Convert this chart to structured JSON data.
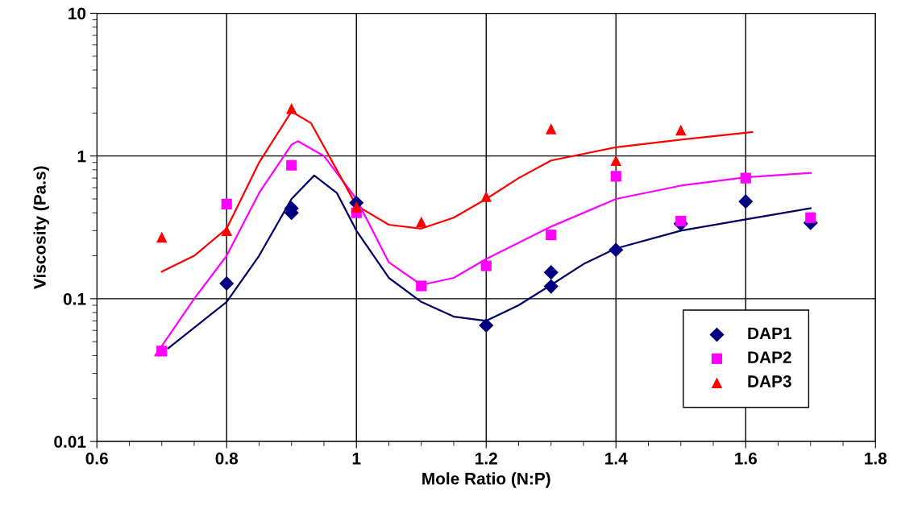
{
  "chart_data": {
    "type": "scatter",
    "xlabel": "Mole Ratio (N:P)",
    "ylabel": "Viscosity (Pa.s)",
    "log": "y",
    "grid": true,
    "legend": "bottom right",
    "xlim": [
      0.6,
      1.8
    ],
    "xticks": [
      0.6,
      0.8,
      1,
      1.2,
      1.4,
      1.6,
      1.8
    ],
    "ylim": [
      0.01,
      10
    ],
    "yticks": [
      0.01,
      0.1,
      1,
      10
    ],
    "series": [
      {
        "name": "DAP1",
        "marker": "diamond",
        "color": "#000080",
        "x": [
          0.8,
          0.9,
          0.9,
          1.0,
          1.2,
          1.3,
          1.3,
          1.4,
          1.5,
          1.6,
          1.7
        ],
        "values": [
          0.128,
          0.43,
          0.4,
          0.47,
          0.065,
          0.153,
          0.122,
          0.22,
          0.335,
          0.48,
          0.34
        ]
      },
      {
        "name": "DAP2",
        "marker": "square",
        "color": "#ff00ff",
        "x": [
          0.7,
          0.8,
          0.9,
          1.0,
          1.1,
          1.2,
          1.3,
          1.4,
          1.5,
          1.6,
          1.7
        ],
        "values": [
          0.043,
          0.46,
          0.86,
          0.4,
          0.123,
          0.17,
          0.28,
          0.72,
          0.35,
          0.7,
          0.37
        ]
      },
      {
        "name": "DAP3",
        "marker": "triangle",
        "color": "#ff0000",
        "x": [
          0.7,
          0.8,
          0.9,
          1.0,
          1.1,
          1.2,
          1.3,
          1.4,
          1.5
        ],
        "values": [
          0.27,
          0.3,
          2.15,
          0.44,
          0.345,
          0.52,
          1.55,
          0.93,
          1.52
        ]
      },
      {
        "type": "line",
        "marker": "none",
        "color": "#000066",
        "x": [
          0.71,
          0.8,
          0.85,
          0.9,
          0.935,
          0.97,
          1.0,
          1.05,
          1.1,
          1.15,
          1.2,
          1.25,
          1.3,
          1.35,
          1.4,
          1.5,
          1.6,
          1.7
        ],
        "values": [
          0.045,
          0.095,
          0.2,
          0.5,
          0.73,
          0.55,
          0.3,
          0.14,
          0.095,
          0.075,
          0.07,
          0.09,
          0.125,
          0.175,
          0.225,
          0.3,
          0.36,
          0.43
        ]
      },
      {
        "type": "line",
        "marker": "none",
        "color": "#ff00ff",
        "x": [
          0.69,
          0.75,
          0.8,
          0.85,
          0.9,
          0.91,
          0.95,
          1.0,
          1.05,
          1.1,
          1.15,
          1.2,
          1.3,
          1.4,
          1.5,
          1.6,
          1.7
        ],
        "values": [
          0.04,
          0.1,
          0.2,
          0.55,
          1.2,
          1.27,
          1.0,
          0.5,
          0.18,
          0.125,
          0.14,
          0.19,
          0.32,
          0.5,
          0.62,
          0.71,
          0.76
        ]
      },
      {
        "type": "line",
        "marker": "none",
        "color": "#ff0000",
        "x": [
          0.7,
          0.75,
          0.8,
          0.85,
          0.9,
          0.93,
          1.0,
          1.05,
          1.1,
          1.15,
          1.2,
          1.25,
          1.3,
          1.4,
          1.5,
          1.61
        ],
        "values": [
          0.155,
          0.2,
          0.31,
          0.9,
          2.05,
          1.7,
          0.45,
          0.33,
          0.31,
          0.37,
          0.5,
          0.7,
          0.93,
          1.15,
          1.3,
          1.47
        ]
      }
    ]
  }
}
